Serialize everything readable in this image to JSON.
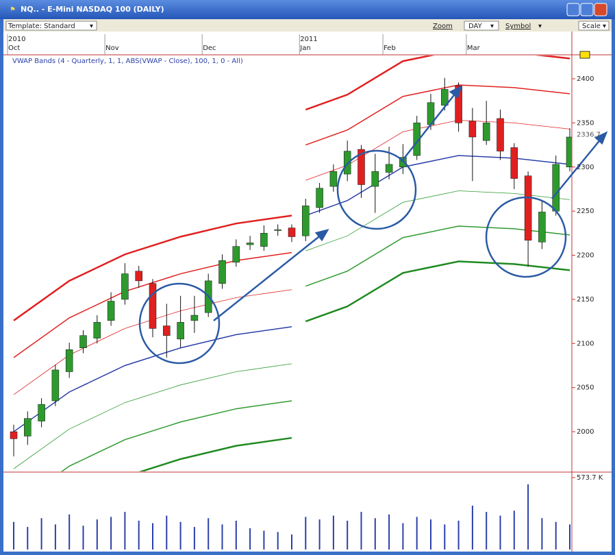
{
  "window": {
    "title": "NQ.. - E-Mini NASDAQ 100 (DAILY)"
  },
  "toolbar": {
    "template": "Template: Standard",
    "zoom": "Zoom",
    "period": "DAY",
    "symbol": "Symbol",
    "scale": "Scale"
  },
  "chart_data": {
    "type": "candlestick",
    "title": "VWAP Bands (4 - Quarterly, 1, 1, ABS(VWAP - Close), 100, 1, 0 - All)",
    "years": [
      "2010",
      null,
      null,
      null,
      null,
      null,
      null,
      null,
      null,
      null,
      null,
      null,
      null,
      null,
      null,
      null,
      null,
      null,
      null,
      null,
      null,
      "2011",
      null,
      null,
      null,
      null,
      null,
      null,
      null,
      null,
      null,
      null,
      null,
      null,
      null,
      null,
      null,
      null,
      null,
      null,
      null
    ],
    "categories": [
      "Oct",
      null,
      null,
      null,
      null,
      null,
      null,
      "Nov",
      null,
      null,
      null,
      null,
      null,
      null,
      "Dec",
      null,
      null,
      null,
      null,
      null,
      null,
      "Jan",
      null,
      null,
      null,
      null,
      null,
      "Feb",
      null,
      null,
      null,
      null,
      null,
      "Mar",
      null,
      null,
      null,
      null,
      null,
      null,
      null
    ],
    "open": [
      2000,
      1995,
      2012,
      2035,
      2068,
      2095,
      2106,
      2126,
      2150,
      2182,
      2168,
      2120,
      2105,
      2126,
      2135,
      2168,
      2192,
      2212,
      2210,
      2228,
      2231,
      2222,
      2254,
      2278,
      2292,
      2320,
      2278,
      2294,
      2300,
      2313,
      2348,
      2370,
      2392,
      2352,
      2330,
      2355,
      2322,
      2290,
      2215,
      2250,
      2300
    ],
    "high": [
      2008,
      2023,
      2038,
      2076,
      2101,
      2115,
      2132,
      2158,
      2191,
      2188,
      2173,
      2145,
      2154,
      2154,
      2179,
      2201,
      2218,
      2222,
      2234,
      2235,
      2235,
      2264,
      2282,
      2303,
      2330,
      2325,
      2315,
      2323,
      2326,
      2358,
      2383,
      2401,
      2396,
      2367,
      2375,
      2365,
      2327,
      2295,
      2261,
      2313,
      2344
    ],
    "low": [
      1972,
      1985,
      2005,
      2029,
      2061,
      2089,
      2100,
      2120,
      2144,
      2163,
      2107,
      2084,
      2095,
      2112,
      2130,
      2162,
      2187,
      2206,
      2205,
      2222,
      2215,
      2216,
      2248,
      2272,
      2284,
      2265,
      2248,
      2286,
      2292,
      2308,
      2342,
      2364,
      2340,
      2284,
      2325,
      2308,
      2275,
      2187,
      2207,
      2245,
      2295
    ],
    "close": [
      1992,
      2015,
      2031,
      2070,
      2093,
      2109,
      2124,
      2148,
      2179,
      2171,
      2117,
      2109,
      2124,
      2132,
      2171,
      2194,
      2210,
      2214,
      2225,
      2229,
      2221,
      2256,
      2276,
      2295,
      2318,
      2280,
      2295,
      2303,
      2311,
      2350,
      2373,
      2388,
      2350,
      2334,
      2350,
      2318,
      2287,
      2217,
      2249,
      2303,
      2334
    ],
    "up_color": "#2e9a2e",
    "down_color": "#e02020",
    "ylim": [
      1955,
      2425
    ],
    "yticks": [
      2000,
      2050,
      2100,
      2150,
      2200,
      2250,
      2300,
      2350,
      2400
    ],
    "last_price": 2336.7,
    "bands": {
      "x": [
        0,
        4,
        8,
        12,
        16,
        20,
        null,
        21,
        24,
        28,
        32,
        36,
        40
      ],
      "series": [
        {
          "color": "#e02020",
          "width": 2.5,
          "values": [
            2126,
            2171,
            2201,
            2221,
            2236,
            2245,
            null,
            2365,
            2382,
            2420,
            2433,
            2430,
            2423
          ]
        },
        {
          "color": "#e02020",
          "width": 1.5,
          "values": [
            2084,
            2129,
            2159,
            2179,
            2194,
            2203,
            null,
            2325,
            2342,
            2380,
            2393,
            2390,
            2383
          ]
        },
        {
          "color": "#e02020",
          "width": 0.8,
          "values": [
            2042,
            2087,
            2117,
            2137,
            2152,
            2161,
            null,
            2285,
            2302,
            2340,
            2353,
            2350,
            2343
          ]
        },
        {
          "color": "#2a3fa8",
          "width": 1.5,
          "values": [
            2000,
            2045,
            2075,
            2095,
            2110,
            2119,
            null,
            2245,
            2262,
            2300,
            2313,
            2310,
            2303
          ]
        },
        {
          "color": "#2e9a2e",
          "width": 0.8,
          "values": [
            1958,
            2003,
            2033,
            2053,
            2068,
            2077,
            null,
            2205,
            2222,
            2260,
            2273,
            2270,
            2263
          ]
        },
        {
          "color": "#2e9a2e",
          "width": 1.5,
          "values": [
            1916,
            1961,
            1991,
            2011,
            2026,
            2035,
            null,
            2165,
            2182,
            2220,
            2233,
            2230,
            2223
          ]
        },
        {
          "color": "#1f8a1f",
          "width": 2.5,
          "values": [
            1874,
            1919,
            1949,
            1969,
            1984,
            1993,
            null,
            2125,
            2142,
            2180,
            2193,
            2190,
            2183
          ]
        }
      ]
    },
    "volume": [
      220,
      180,
      250,
      200,
      280,
      190,
      240,
      260,
      300,
      230,
      210,
      270,
      220,
      180,
      250,
      200,
      230,
      170,
      150,
      140,
      120,
      260,
      240,
      270,
      230,
      300,
      250,
      280,
      210,
      260,
      240,
      200,
      230,
      350,
      300,
      270,
      310,
      520,
      250,
      220,
      200
    ],
    "volume_color": "#2a3fa8",
    "volume_ylim": [
      0,
      573.7
    ],
    "volume_yticks": [
      {
        "value": 573.7,
        "label": "573.7 K"
      }
    ]
  }
}
